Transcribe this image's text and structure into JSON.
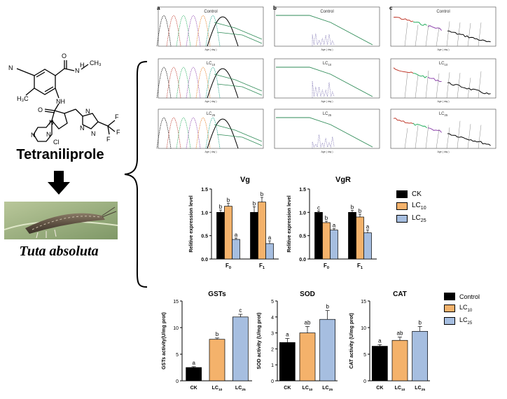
{
  "compound": {
    "name": "Tetraniliprole"
  },
  "insect": {
    "name": "Tuta absoluta"
  },
  "life_table": {
    "panel_letters": [
      "a",
      "b",
      "c"
    ],
    "row_labels": [
      "Control",
      "LC10",
      "LC25"
    ],
    "x_axis_label": "Age ( day )"
  },
  "colors": {
    "CK": "#000000",
    "LC10": "#F4B26B",
    "LC25": "#A6BEE0"
  },
  "chart_data": [
    {
      "type": "bar",
      "title": "Vg",
      "ylabel": "Relitive expression level",
      "categories": [
        "F0",
        "F1"
      ],
      "ylim": [
        0,
        1.5
      ],
      "yticks": [
        "0.0",
        "0.5",
        "1.0",
        "1.5"
      ],
      "series": [
        {
          "name": "CK",
          "values": [
            1.0,
            1.0
          ],
          "errors": [
            0.05,
            0.12
          ],
          "letters": [
            "b",
            "b"
          ]
        },
        {
          "name": "LC10",
          "values": [
            1.13,
            1.22
          ],
          "errors": [
            0.06,
            0.1
          ],
          "letters": [
            "b",
            "b"
          ]
        },
        {
          "name": "LC25",
          "values": [
            0.42,
            0.33
          ],
          "errors": [
            0.03,
            0.06
          ],
          "letters": [
            "a",
            "a"
          ]
        }
      ]
    },
    {
      "type": "bar",
      "title": "VgR",
      "ylabel": "Relitive expression level",
      "categories": [
        "F0",
        "F1"
      ],
      "ylim": [
        0,
        1.5
      ],
      "yticks": [
        "0.0",
        "0.5",
        "1.0",
        "1.5"
      ],
      "series": [
        {
          "name": "CK",
          "values": [
            1.0,
            1.0
          ],
          "errors": [
            0.03,
            0.04
          ],
          "letters": [
            "c",
            "b"
          ]
        },
        {
          "name": "LC10",
          "values": [
            0.78,
            0.9
          ],
          "errors": [
            0.03,
            0.06
          ],
          "letters": [
            "b",
            "b"
          ]
        },
        {
          "name": "LC25",
          "values": [
            0.62,
            0.56
          ],
          "errors": [
            0.03,
            0.06
          ],
          "letters": [
            "a",
            "a"
          ]
        }
      ]
    },
    {
      "type": "bar",
      "title": "GSTs",
      "ylabel": "GSTs activity(U/mg prot)",
      "categories": [
        "CK",
        "LC10",
        "LC25"
      ],
      "ylim": [
        0,
        15
      ],
      "yticks": [
        "0",
        "5",
        "10",
        "15"
      ],
      "values": [
        2.5,
        7.8,
        12.0
      ],
      "errors": [
        0.15,
        0.25,
        0.5
      ],
      "letters": [
        "a",
        "b",
        "c"
      ]
    },
    {
      "type": "bar",
      "title": "SOD",
      "ylabel": "SOD activity (U/mg prot)",
      "categories": [
        "CK",
        "LC10",
        "LC25"
      ],
      "ylim": [
        0,
        5
      ],
      "yticks": [
        "0",
        "1",
        "2",
        "3",
        "4",
        "5"
      ],
      "values": [
        2.4,
        3.0,
        3.85
      ],
      "errors": [
        0.25,
        0.4,
        0.55
      ],
      "letters": [
        "a",
        "ab",
        "b"
      ]
    },
    {
      "type": "bar",
      "title": "CAT",
      "ylabel": "CAT activity (U/mg prot)",
      "categories": [
        "CK",
        "LC10",
        "LC25"
      ],
      "ylim": [
        0,
        15
      ],
      "yticks": [
        "0",
        "5",
        "10",
        "15"
      ],
      "values": [
        6.5,
        7.6,
        9.3
      ],
      "errors": [
        0.3,
        0.6,
        0.9
      ],
      "letters": [
        "a",
        "ab",
        "b"
      ]
    }
  ],
  "legends": {
    "genes": [
      "CK",
      "LC10",
      "LC25"
    ],
    "enzymes": [
      "Control",
      "LC10",
      "LC25"
    ]
  }
}
